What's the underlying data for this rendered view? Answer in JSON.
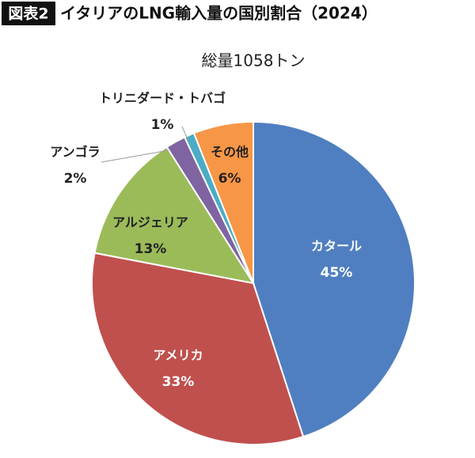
{
  "chart_data": {
    "type": "pie",
    "figure_label": "図表2",
    "title": "イタリアのLNG輸入量の国別割合（2024）",
    "subtitle": "総量1058トン",
    "categories": [
      "カタール",
      "アメリカ",
      "アルジェリア",
      "アンゴラ",
      "トリニダード・トバゴ",
      "その他"
    ],
    "values": [
      45,
      33,
      13,
      2,
      1,
      6
    ],
    "value_labels": [
      "45%",
      "33%",
      "13%",
      "2%",
      "1%",
      "6%"
    ],
    "colors": [
      "#4f7fc0",
      "#c0504d",
      "#9bbb59",
      "#8064a2",
      "#4bacc6",
      "#f79646"
    ]
  }
}
